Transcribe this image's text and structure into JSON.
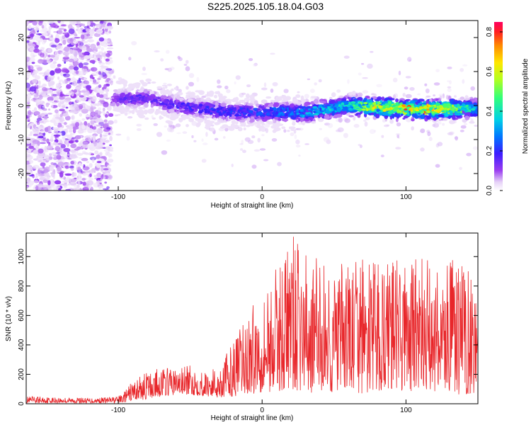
{
  "title": "S225.2025.105.18.04.G03",
  "colors": {
    "snr_line": "#e8262a",
    "frame": "#000000"
  },
  "chart_data": [
    {
      "type": "heatmap",
      "xlabel": "Height of straight line (km)",
      "ylabel": "Frequency (Hz)",
      "xlim": [
        -164,
        150
      ],
      "ylim": [
        -25,
        25
      ],
      "xticks": [
        -100,
        0,
        100
      ],
      "yticks": [
        -20,
        -10,
        0,
        10,
        20
      ],
      "x_tick_labels": [
        "-100",
        "0",
        "100"
      ],
      "y_tick_labels": [
        "-20",
        "-10",
        "0",
        "10",
        "20"
      ],
      "colorbar": {
        "label": "Normalized spectral amplitude",
        "range": [
          0.0,
          0.85
        ],
        "ticks": [
          0.0,
          0.2,
          0.4,
          0.6,
          0.8
        ],
        "tick_labels": [
          "0.0",
          "0.2",
          "0.4",
          "0.6",
          "0.8"
        ],
        "colormap": "rainbow"
      },
      "ridge": {
        "start_x": -104,
        "center_freq_hz": [
          [
            -104,
            2
          ],
          [
            -80,
            2
          ],
          [
            -60,
            0
          ],
          [
            -20,
            -2
          ],
          [
            0,
            -2
          ],
          [
            30,
            -2
          ],
          [
            60,
            0
          ],
          [
            100,
            -1
          ],
          [
            150,
            -1
          ]
        ],
        "peak_amplitude": [
          [
            -104,
            0.15
          ],
          [
            -60,
            0.2
          ],
          [
            0,
            0.25
          ],
          [
            60,
            0.45
          ],
          [
            80,
            0.7
          ],
          [
            100,
            0.8
          ],
          [
            120,
            0.75
          ],
          [
            150,
            0.4
          ]
        ]
      },
      "grid": false
    },
    {
      "type": "line",
      "xlabel": "Height of straight line (km)",
      "ylabel": "SNR (10 * v/v)",
      "xlim": [
        -164,
        150
      ],
      "ylim": [
        0,
        1160
      ],
      "xticks": [
        -100,
        0,
        100
      ],
      "yticks": [
        0,
        200,
        400,
        600,
        800,
        1000
      ],
      "x_tick_labels": [
        "-100",
        "0",
        "100"
      ],
      "y_tick_labels": [
        "0",
        "200",
        "400",
        "600",
        "800",
        "1000"
      ],
      "series": [
        {
          "envelope_x": [
            -164,
            -120,
            -100,
            -95,
            -90,
            -80,
            -70,
            -60,
            -50,
            -40,
            -30,
            -20,
            -10,
            0,
            10,
            20,
            30,
            40,
            50,
            60,
            70,
            80,
            90,
            100,
            110,
            120,
            130,
            140,
            150
          ],
          "envelope_max": [
            50,
            40,
            50,
            90,
            160,
            220,
            250,
            240,
            260,
            220,
            260,
            420,
            620,
            780,
            920,
            1160,
            1020,
            1000,
            920,
            980,
            1000,
            960,
            980,
            980,
            1000,
            980,
            1000,
            960,
            900
          ],
          "envelope_min": [
            5,
            5,
            5,
            10,
            20,
            30,
            50,
            60,
            60,
            50,
            40,
            50,
            60,
            80,
            80,
            100,
            60,
            80,
            60,
            80,
            60,
            80,
            100,
            80,
            90,
            80,
            70,
            60,
            80
          ]
        }
      ],
      "grid": false
    }
  ]
}
